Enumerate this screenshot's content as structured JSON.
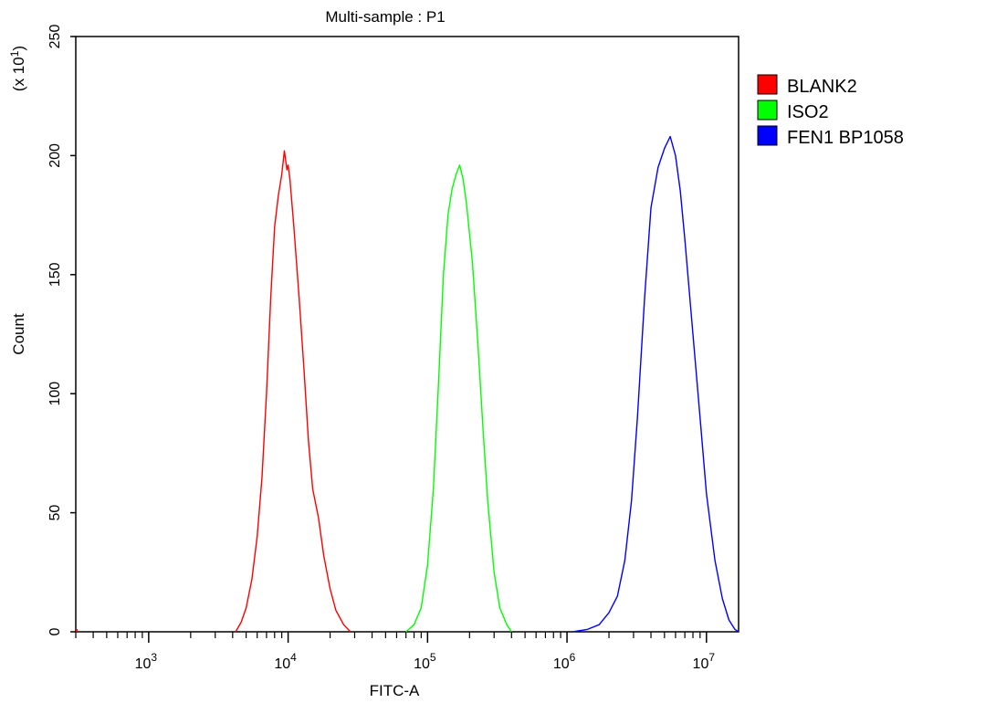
{
  "chart_data": {
    "type": "line",
    "title": "Multi-sample : P1",
    "xlabel": "FITC-A",
    "ylabel": "Count",
    "y_multiplier": {
      "base": "(x 10",
      "exp": "1",
      "close": ")"
    },
    "x_scale": "log",
    "xlim": [
      300,
      17000000
    ],
    "ylim": [
      0,
      250
    ],
    "x_ticks": [
      {
        "base": "10",
        "exp": "3",
        "value": 1000
      },
      {
        "base": "10",
        "exp": "4",
        "value": 10000
      },
      {
        "base": "10",
        "exp": "5",
        "value": 100000
      },
      {
        "base": "10",
        "exp": "6",
        "value": 1000000
      },
      {
        "base": "10",
        "exp": "7",
        "value": 10000000
      }
    ],
    "y_ticks": [
      "0",
      "50",
      "100",
      "150",
      "200",
      "250"
    ],
    "y_tick_values": [
      0,
      50,
      100,
      150,
      200,
      250
    ],
    "grid": false,
    "legend": "right",
    "series": [
      {
        "name": "BLANK2",
        "color": "#ff0000",
        "points": [
          [
            4200,
            0
          ],
          [
            4600,
            4
          ],
          [
            5000,
            10
          ],
          [
            5500,
            22
          ],
          [
            6000,
            40
          ],
          [
            6500,
            65
          ],
          [
            7000,
            100
          ],
          [
            7500,
            140
          ],
          [
            8000,
            170
          ],
          [
            8500,
            183
          ],
          [
            9000,
            192
          ],
          [
            9400,
            202
          ],
          [
            9800,
            194
          ],
          [
            10000,
            196
          ],
          [
            10300,
            190
          ],
          [
            11000,
            170
          ],
          [
            12000,
            140
          ],
          [
            13000,
            110
          ],
          [
            14000,
            80
          ],
          [
            15000,
            60
          ],
          [
            16500,
            48
          ],
          [
            18000,
            32
          ],
          [
            20000,
            18
          ],
          [
            22000,
            9
          ],
          [
            25000,
            3
          ],
          [
            28000,
            0
          ]
        ]
      },
      {
        "name": "ISO2",
        "color": "#00ff00",
        "points": [
          [
            70000,
            0
          ],
          [
            80000,
            3
          ],
          [
            90000,
            10
          ],
          [
            100000,
            28
          ],
          [
            110000,
            60
          ],
          [
            120000,
            105
          ],
          [
            130000,
            150
          ],
          [
            140000,
            175
          ],
          [
            150000,
            186
          ],
          [
            160000,
            192
          ],
          [
            170000,
            196
          ],
          [
            180000,
            190
          ],
          [
            190000,
            180
          ],
          [
            210000,
            155
          ],
          [
            230000,
            120
          ],
          [
            250000,
            85
          ],
          [
            270000,
            55
          ],
          [
            300000,
            25
          ],
          [
            330000,
            10
          ],
          [
            370000,
            3
          ],
          [
            400000,
            0
          ]
        ]
      },
      {
        "name": "FEN1 BP1058",
        "color": "#0000ff",
        "points": [
          [
            1100000,
            0
          ],
          [
            1400000,
            1
          ],
          [
            1700000,
            3
          ],
          [
            2000000,
            8
          ],
          [
            2300000,
            15
          ],
          [
            2600000,
            30
          ],
          [
            2900000,
            55
          ],
          [
            3200000,
            90
          ],
          [
            3600000,
            140
          ],
          [
            4000000,
            178
          ],
          [
            4500000,
            195
          ],
          [
            5000000,
            203
          ],
          [
            5500000,
            208
          ],
          [
            6000000,
            200
          ],
          [
            6500000,
            185
          ],
          [
            7000000,
            165
          ],
          [
            8000000,
            125
          ],
          [
            9000000,
            90
          ],
          [
            10000000,
            58
          ],
          [
            11500000,
            30
          ],
          [
            13000000,
            14
          ],
          [
            14500000,
            5
          ],
          [
            16000000,
            1
          ],
          [
            17000000,
            0
          ]
        ]
      }
    ]
  }
}
